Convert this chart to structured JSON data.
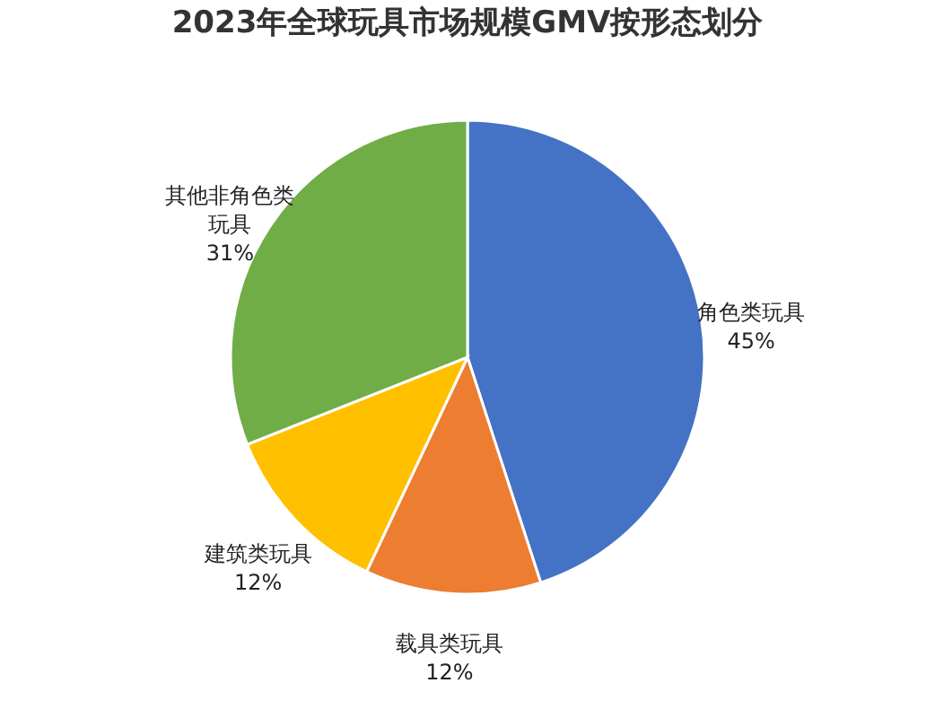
{
  "chart_data": {
    "type": "pie",
    "title": "2023年全球玩具市场规模GMV按形态划分",
    "categories": [
      "角色类玩具",
      "载具类玩具",
      "建筑类玩具",
      "其他非角色类玩具"
    ],
    "values": [
      45,
      12,
      12,
      31
    ],
    "colors": [
      "#4472c4",
      "#ed7d31",
      "#ffc000",
      "#70ad47"
    ],
    "value_labels": [
      "45%",
      "12%",
      "12%",
      "31%"
    ]
  }
}
